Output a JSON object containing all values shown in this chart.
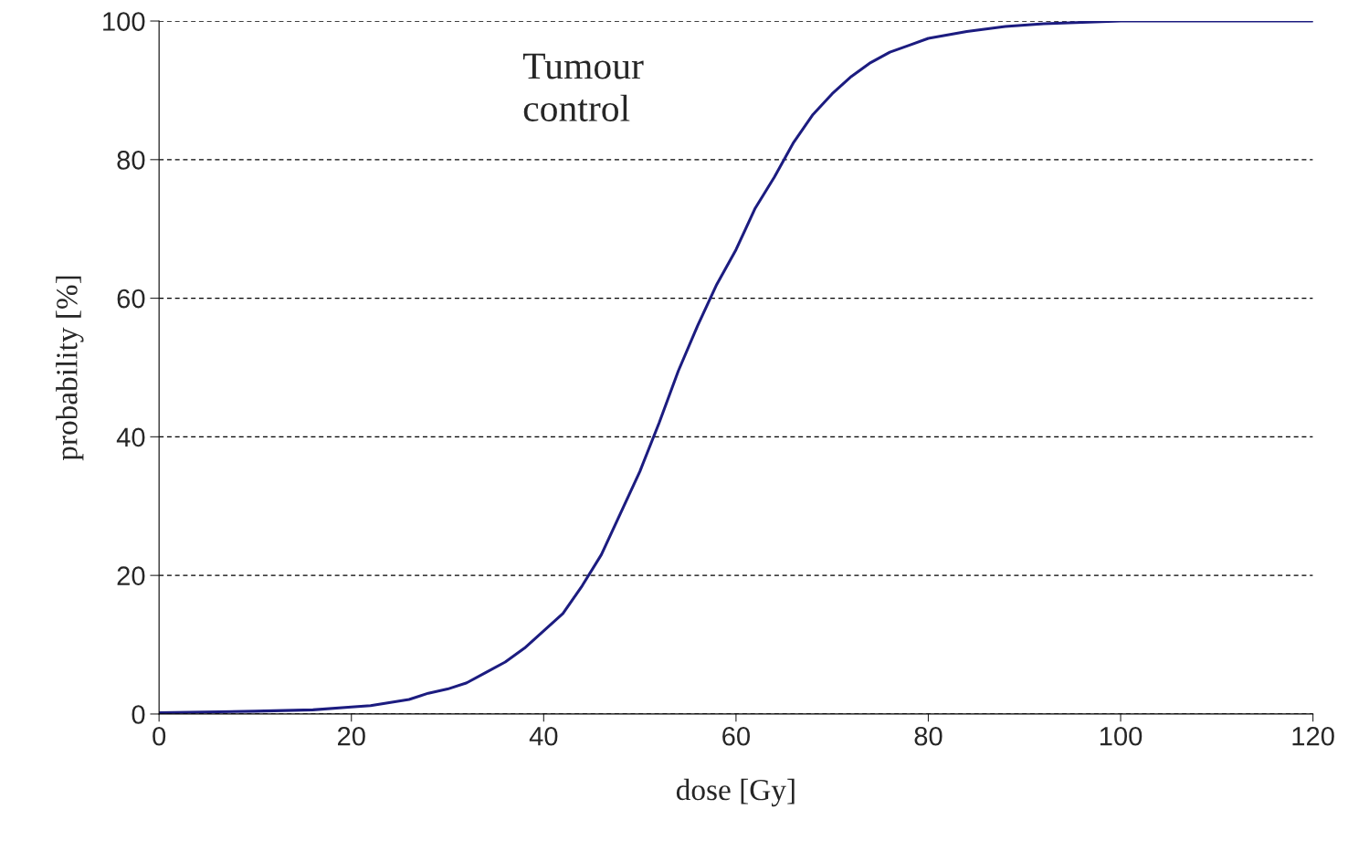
{
  "chart_data": {
    "type": "line",
    "xlabel": "dose [Gy]",
    "ylabel": "probability [%]",
    "annotations": [
      "Tumour\ncontrol"
    ],
    "x": [
      0,
      10,
      16,
      20,
      22,
      26,
      28,
      30,
      32,
      34,
      36,
      38,
      40,
      42,
      44,
      46,
      48,
      50,
      52,
      54,
      56,
      58,
      60,
      62,
      64,
      66,
      68,
      70,
      72,
      74,
      76,
      78,
      80,
      84,
      88,
      92,
      96,
      100,
      120
    ],
    "series": [
      {
        "color": "#1c1c80",
        "values": [
          0.2,
          0.4,
          0.6,
          1.0,
          1.2,
          2.1,
          3,
          3.6,
          4.5,
          6,
          7.5,
          9.5,
          12,
          14.5,
          18.5,
          23,
          29,
          35,
          42,
          49.5,
          56,
          62,
          67,
          73,
          77.5,
          82.5,
          86.5,
          89.5,
          92,
          94,
          95.5,
          96.5,
          97.5,
          98.5,
          99.2,
          99.6,
          99.8,
          100,
          100
        ]
      }
    ],
    "xlim": [
      0,
      120
    ],
    "ylim": [
      0,
      100
    ],
    "xticks": [
      0,
      20,
      40,
      60,
      80,
      100,
      120
    ],
    "yticks": [
      0,
      20,
      40,
      60,
      80,
      100
    ],
    "grid": "y",
    "legend": false,
    "marker": "none",
    "line_style": "solid"
  }
}
